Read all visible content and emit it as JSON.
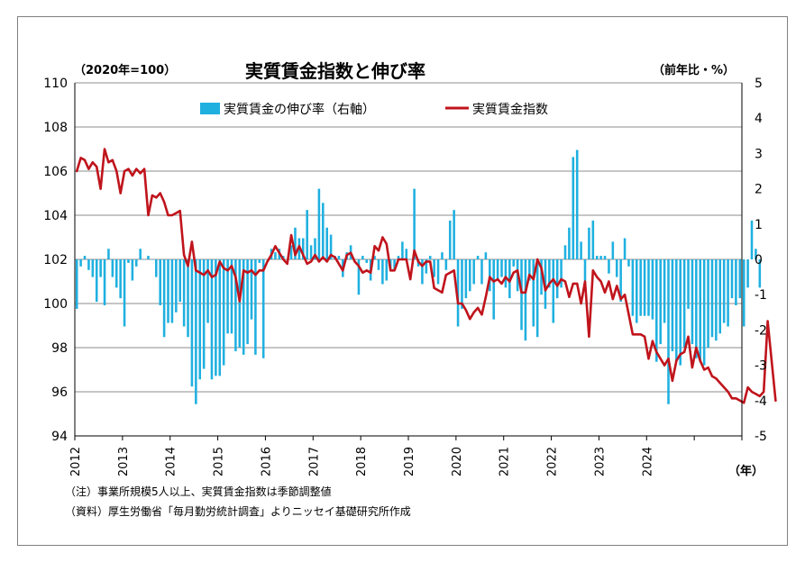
{
  "chart_data": {
    "type": "bar+line",
    "title": "実質賃金指数と伸び率",
    "left_axis_unit": "（2020年=100）",
    "right_axis_unit": "（前年比・%）",
    "x_unit": "（年）",
    "left_ylim": [
      94,
      110
    ],
    "left_ticks": [
      "94",
      "96",
      "98",
      "100",
      "102",
      "104",
      "106",
      "108",
      "110"
    ],
    "right_ylim": [
      -5,
      5
    ],
    "right_ticks": [
      "-5",
      "-4",
      "-3",
      "-2",
      "-1",
      "0",
      "1",
      "2",
      "3",
      "4",
      "5"
    ],
    "x_start": "2012-01",
    "x_ticks": [
      "2012",
      "2013",
      "2014",
      "2015",
      "2016",
      "2017",
      "2018",
      "2019",
      "2020",
      "2021",
      "2022",
      "2023",
      "2024"
    ],
    "grid": "horizontal",
    "legend_position": "top-center",
    "series": [
      {
        "name": "実質賃金の伸び率（右軸）",
        "type": "bar",
        "axis": "right",
        "color": "#1fb0e0",
        "values": [
          -1.4,
          -0.2,
          0.1,
          -0.3,
          -0.5,
          -1.2,
          -0.5,
          -1.3,
          0.3,
          -0.5,
          -0.8,
          -1.1,
          -1.9,
          -0.1,
          -0.6,
          -0.2,
          0.3,
          0.0,
          0.1,
          0.0,
          -0.5,
          -1.3,
          -2.2,
          -1.8,
          -1.8,
          -1.5,
          -1.2,
          -1.9,
          -2.2,
          -3.6,
          -4.1,
          -3.4,
          -3.1,
          -1.8,
          -3.4,
          -3.3,
          -3.3,
          -3.0,
          -2.1,
          -2.1,
          -2.6,
          -2.5,
          -2.7,
          -2.4,
          -1.7,
          -2.7,
          -0.1,
          -2.8,
          0.0,
          0.3,
          0.2,
          0.3,
          0.1,
          0.0,
          0.4,
          0.9,
          0.6,
          0.6,
          1.4,
          0.4,
          0.6,
          2.0,
          1.6,
          0.9,
          0.7,
          0.1,
          0.1,
          -0.5,
          0.2,
          0.4,
          0.0,
          -1.0,
          0.1,
          -0.1,
          -0.6,
          0.1,
          -0.3,
          -0.7,
          -0.6,
          -0.3,
          -0.3,
          0.1,
          0.5,
          0.3,
          0.0,
          2.0,
          -0.2,
          -0.7,
          -0.4,
          0.1,
          -0.5,
          -0.7,
          0.2,
          -0.3,
          1.1,
          1.4,
          -1.9,
          -1.4,
          -1.1,
          -0.9,
          -0.7,
          0.1,
          -0.7,
          0.2,
          -0.9,
          -1.7,
          -0.6,
          -0.5,
          -0.8,
          -1.1,
          -0.2,
          -0.9,
          -2.0,
          -2.3,
          -0.6,
          -1.9,
          -2.2,
          -1.0,
          -1.4,
          -0.8,
          -1.8,
          -1.1,
          -0.8,
          0.4,
          0.9,
          2.9,
          3.1,
          0.5,
          -0.6,
          0.9,
          1.1,
          0.1,
          0.1,
          0.1,
          -0.4,
          0.5,
          -0.5,
          -1.2,
          0.6,
          -0.2,
          -1.6,
          -1.8,
          -1.6,
          -1.6,
          -1.6,
          -1.7,
          -2.9,
          -2.4,
          -1.8,
          -4.1,
          -2.6,
          -2.9,
          -3.0,
          -2.5,
          -1.4,
          -2.4,
          -2.8,
          -2.9,
          -3.0,
          -2.5,
          -2.2,
          -2.3,
          -2.1,
          -1.8,
          -1.9,
          -1.1,
          -1.3,
          -1.1,
          -1.9,
          -0.8,
          1.1,
          0.3,
          -0.8
        ]
      },
      {
        "name": "実質賃金指数",
        "type": "line",
        "axis": "left",
        "color": "#c0141c",
        "values": [
          106.0,
          106.6,
          106.5,
          106.1,
          106.4,
          106.2,
          105.2,
          107.0,
          106.4,
          106.5,
          106.0,
          105.0,
          106.0,
          106.1,
          105.8,
          106.1,
          105.9,
          106.1,
          104.0,
          104.9,
          104.8,
          105.0,
          104.6,
          104.0,
          104.0,
          104.1,
          104.2,
          102.2,
          101.7,
          102.8,
          101.5,
          101.4,
          101.3,
          101.5,
          101.2,
          101.3,
          101.9,
          101.6,
          101.5,
          101.7,
          101.2,
          100.1,
          101.5,
          101.4,
          101.5,
          101.3,
          101.5,
          101.5,
          101.9,
          102.2,
          102.6,
          102.3,
          102.0,
          101.8,
          103.1,
          102.2,
          102.6,
          102.2,
          101.8,
          101.9,
          102.2,
          101.9,
          102.1,
          101.9,
          102.2,
          102.1,
          101.8,
          101.5,
          102.2,
          102.3,
          101.9,
          101.7,
          101.4,
          101.5,
          101.4,
          102.6,
          102.4,
          103.0,
          102.7,
          101.5,
          101.5,
          102.0,
          102.0,
          102.0,
          101.1,
          102.4,
          101.9,
          101.7,
          101.9,
          101.9,
          100.7,
          100.6,
          100.5,
          101.3,
          101.4,
          101.5,
          100.0,
          100.0,
          99.7,
          99.3,
          99.6,
          99.8,
          99.5,
          100.3,
          101.2,
          101.0,
          101.1,
          100.9,
          101.2,
          101.0,
          101.4,
          101.5,
          100.5,
          100.5,
          101.3,
          101.1,
          102.0,
          101.6,
          100.6,
          100.9,
          101.1,
          100.8,
          101.1,
          101.0,
          100.3,
          100.9,
          100.9,
          100.0,
          101.0,
          98.5,
          101.5,
          101.2,
          101.0,
          100.5,
          101.0,
          100.2,
          100.8,
          100.2,
          100.4,
          99.5,
          98.6,
          98.6,
          98.6,
          98.5,
          97.5,
          98.3,
          97.8,
          97.5,
          97.2,
          97.5,
          96.5,
          97.4,
          97.7,
          97.8,
          98.5,
          97.1,
          98.0,
          97.4,
          97.0,
          97.1,
          96.7,
          96.6,
          96.4,
          96.2,
          96.0,
          95.7,
          95.7,
          95.6,
          95.5,
          96.2,
          96.0,
          95.9,
          95.8,
          96.0,
          99.2,
          97.4,
          95.6
        ]
      }
    ]
  },
  "notes": [
    "（注）事業所規模5人以上、実質賃金指数は季節調整値",
    "（資料）厚生労働省「毎月勤労統計調査」よりニッセイ基礎研究所作成"
  ]
}
